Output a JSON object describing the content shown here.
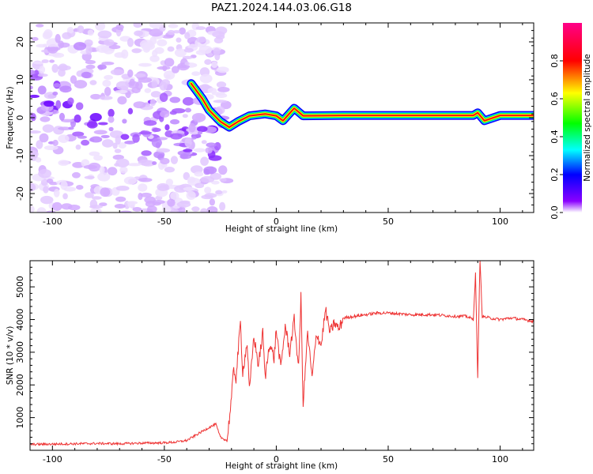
{
  "title": "PAZ1.2024.144.03.06.G18",
  "chart_data": [
    {
      "type": "heatmap",
      "xlabel": "Height of straight line (km)",
      "ylabel": "Frequency (Hz)",
      "xlim": [
        -110,
        115
      ],
      "ylim": [
        -25,
        25
      ],
      "xticks": [
        -100,
        -50,
        0,
        50,
        100
      ],
      "yticks": [
        -20,
        -10,
        0,
        10,
        20
      ],
      "colorbar": {
        "label": "Normalized spectral amplitude",
        "range": [
          0,
          1
        ],
        "ticks": [
          0.0,
          0.2,
          0.4,
          0.6,
          0.8
        ],
        "colors": [
          "#ffffff",
          "#8a00ff",
          "#0000ff",
          "#00ffff",
          "#00ff00",
          "#ffff00",
          "#ff0000",
          "#ff0088"
        ]
      },
      "noise_region": {
        "x_range": [
          -110,
          -22
        ],
        "freq_range": [
          -25,
          25
        ]
      },
      "ridge": [
        {
          "x": -38,
          "freq": 9.0
        },
        {
          "x": -33,
          "freq": 5.0
        },
        {
          "x": -30,
          "freq": 2.0
        },
        {
          "x": -25,
          "freq": -1.0
        },
        {
          "x": -21,
          "freq": -2.5
        },
        {
          "x": -17,
          "freq": -1.0
        },
        {
          "x": -12,
          "freq": 0.5
        },
        {
          "x": -5,
          "freq": 1.0
        },
        {
          "x": 0,
          "freq": 0.5
        },
        {
          "x": 3,
          "freq": -0.8
        },
        {
          "x": 8,
          "freq": 2.5
        },
        {
          "x": 12,
          "freq": 0.5
        },
        {
          "x": 30,
          "freq": 0.6
        },
        {
          "x": 60,
          "freq": 0.6
        },
        {
          "x": 88,
          "freq": 0.6
        },
        {
          "x": 90,
          "freq": 1.3
        },
        {
          "x": 93,
          "freq": -0.8
        },
        {
          "x": 100,
          "freq": 0.6
        },
        {
          "x": 115,
          "freq": 0.6
        }
      ]
    },
    {
      "type": "line",
      "xlabel": "Height of straight line (km)",
      "ylabel": "SNR (10 * v/v)",
      "xlim": [
        -110,
        115
      ],
      "ylim": [
        0,
        5800
      ],
      "xticks": [
        -100,
        -50,
        0,
        50,
        100
      ],
      "yticks": [
        1000,
        2000,
        3000,
        4000,
        5000
      ],
      "color": "#ee3333",
      "x": [
        -110,
        -100,
        -90,
        -80,
        -70,
        -60,
        -50,
        -45,
        -40,
        -35,
        -30,
        -27,
        -25,
        -22,
        -20,
        -19,
        -18,
        -16,
        -15,
        -13,
        -12,
        -10,
        -8,
        -6,
        -5,
        -3,
        -1,
        0,
        2,
        4,
        6,
        8,
        10,
        11,
        12,
        14,
        16,
        18,
        20,
        22,
        24,
        26,
        28,
        30,
        35,
        40,
        45,
        50,
        60,
        70,
        80,
        85,
        88,
        89,
        90,
        91,
        92,
        95,
        100,
        105,
        110,
        115
      ],
      "values": [
        180,
        190,
        200,
        210,
        200,
        220,
        230,
        250,
        300,
        500,
        700,
        800,
        400,
        300,
        1600,
        2500,
        2200,
        3900,
        2400,
        3300,
        1800,
        3500,
        2600,
        3600,
        2200,
        3300,
        2800,
        3700,
        2500,
        3800,
        3000,
        4000,
        2500,
        4700,
        1400,
        3600,
        2200,
        3600,
        3200,
        4300,
        3600,
        3900,
        3700,
        4050,
        4100,
        4150,
        4200,
        4200,
        4150,
        4150,
        4100,
        4100,
        4000,
        5400,
        2200,
        5850,
        4100,
        4050,
        4000,
        4050,
        4000,
        3950
      ]
    }
  ]
}
